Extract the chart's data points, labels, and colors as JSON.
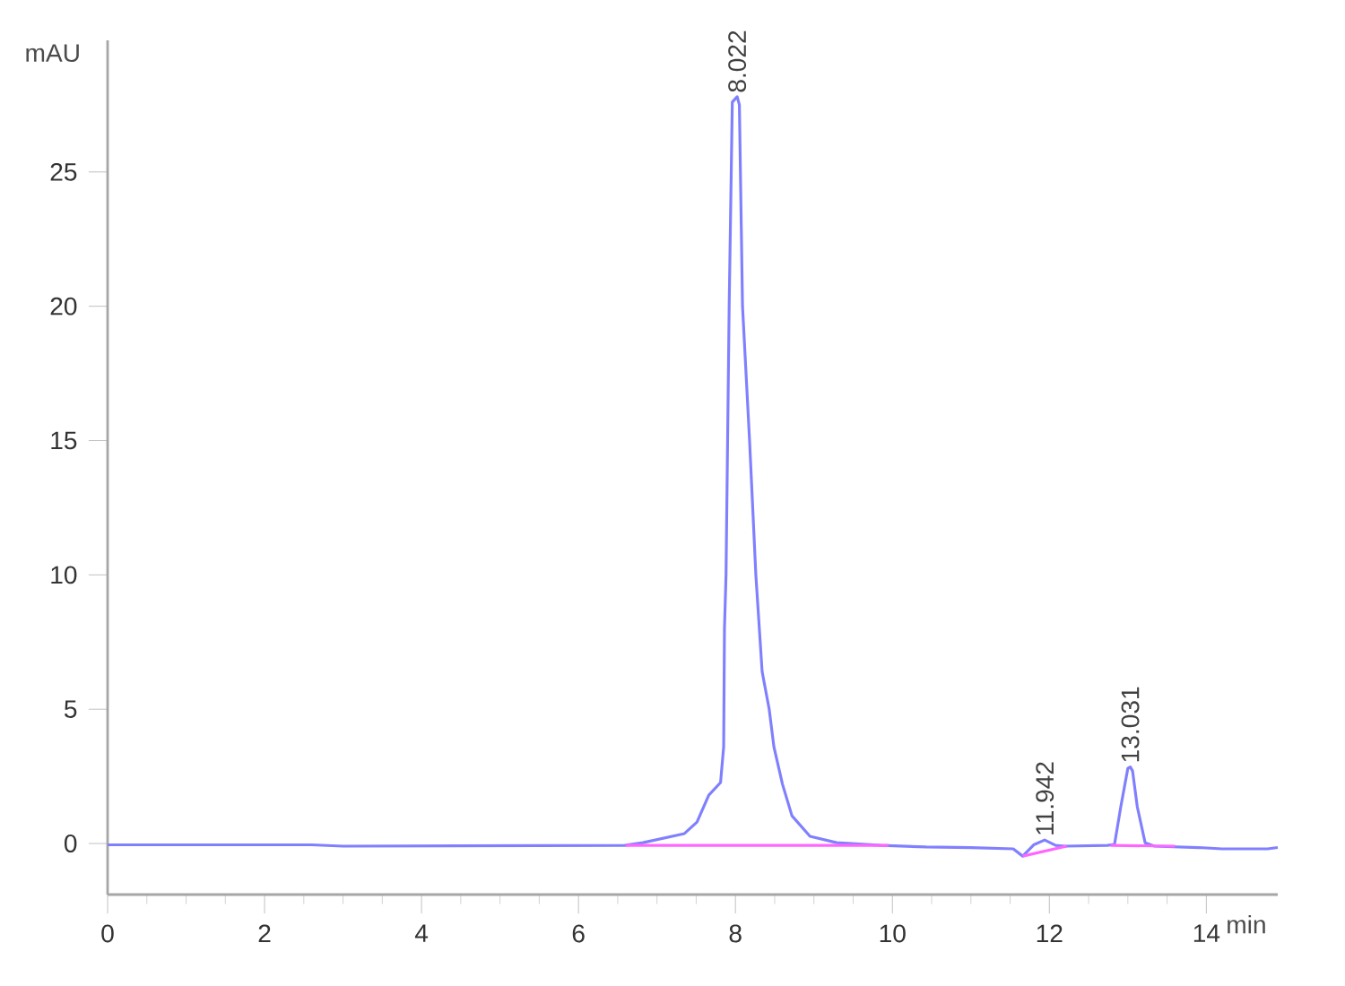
{
  "chart_data": {
    "type": "line",
    "xlabel": "min",
    "ylabel": "mAU",
    "xlim": [
      0,
      14.91
    ],
    "ylim": [
      -1.9,
      29.9
    ],
    "xticks": [
      0,
      2,
      4,
      6,
      8,
      10,
      12,
      14
    ],
    "yticks": [
      0,
      5,
      10,
      15,
      20,
      25
    ],
    "series": [
      {
        "color": "#8080ff",
        "x": [
          0,
          2.6,
          3.0,
          6.59,
          6.82,
          7.35,
          7.51,
          7.66,
          7.81,
          7.85,
          7.86,
          7.88,
          7.9,
          7.92,
          7.96,
          8.022,
          8.05,
          8.09,
          8.18,
          8.26,
          8.34,
          8.43,
          8.49,
          8.6,
          8.72,
          8.95,
          9.29,
          9.86,
          10.43,
          11.0,
          11.54,
          11.66,
          11.8,
          11.94,
          12.08,
          12.2,
          12.74,
          12.83,
          12.91,
          13.0,
          13.031,
          13.06,
          13.12,
          13.22,
          13.34,
          13.9,
          14.2,
          14.5,
          14.78,
          14.91
        ],
        "values": [
          -0.05,
          -0.05,
          -0.1,
          -0.07,
          0.03,
          0.37,
          0.8,
          1.8,
          2.27,
          3.6,
          8.0,
          10,
          15,
          20,
          27.6,
          27.8,
          27.5,
          20,
          15,
          10,
          6.4,
          5,
          3.6,
          2.2,
          1.03,
          0.27,
          0.03,
          -0.07,
          -0.13,
          -0.15,
          -0.2,
          -0.47,
          -0.05,
          0.13,
          -0.07,
          -0.1,
          -0.07,
          -0.03,
          1.37,
          2.8,
          2.85,
          2.7,
          1.37,
          0.03,
          -0.1,
          -0.15,
          -0.2,
          -0.2,
          -0.2,
          -0.15
        ]
      },
      {
        "color": "#ff66ff",
        "x": [
          6.6,
          9.95
        ],
        "values": [
          -0.07,
          -0.07
        ]
      },
      {
        "color": "#ff66ff",
        "x": [
          11.66,
          12.22
        ],
        "values": [
          -0.47,
          -0.1
        ]
      },
      {
        "color": "#ff66ff",
        "x": [
          12.78,
          13.6
        ],
        "values": [
          -0.07,
          -0.1
        ]
      }
    ],
    "annotations": [
      {
        "text": "8.022",
        "x": 8.022,
        "y": 27.8
      },
      {
        "text": "11.942",
        "x": 11.942,
        "y": 0.13
      },
      {
        "text": "13.031",
        "x": 13.031,
        "y": 2.85
      }
    ]
  }
}
